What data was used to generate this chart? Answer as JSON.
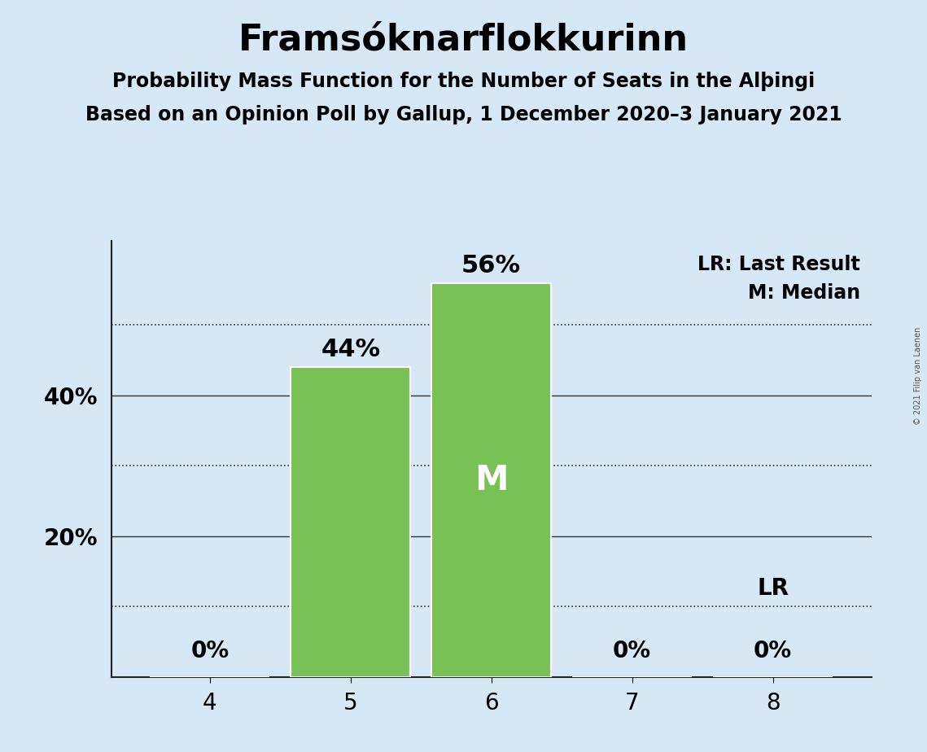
{
  "title": "Framsóknarflokkurinn",
  "subtitle1": "Probability Mass Function for the Number of Seats in the Alþingi",
  "subtitle2": "Based on an Opinion Poll by Gallup, 1 December 2020–3 January 2021",
  "categories": [
    4,
    5,
    6,
    7,
    8
  ],
  "values": [
    0,
    44,
    56,
    0,
    0
  ],
  "bar_color": "#77C155",
  "background_color": "#D6E8F5",
  "median_bar": 6,
  "last_result_bar": 8,
  "median_label": "M",
  "median_label_color": "#FFFFFF",
  "ylim": [
    0,
    62
  ],
  "title_fontsize": 32,
  "subtitle_fontsize": 17,
  "bar_label_fontsize": 22,
  "tick_fontsize": 20,
  "legend_fontsize": 17,
  "watermark": "© 2021 Filip van Laenen",
  "legend_line1": "LR: Last Result",
  "legend_line2": "M: Median",
  "lr_label": "LR",
  "dotted_grid_levels": [
    10,
    30,
    50
  ],
  "solid_grid_levels": [
    20,
    40
  ],
  "ytick_positions": [
    20,
    40
  ],
  "ytick_labels": [
    "20%",
    "40%"
  ]
}
